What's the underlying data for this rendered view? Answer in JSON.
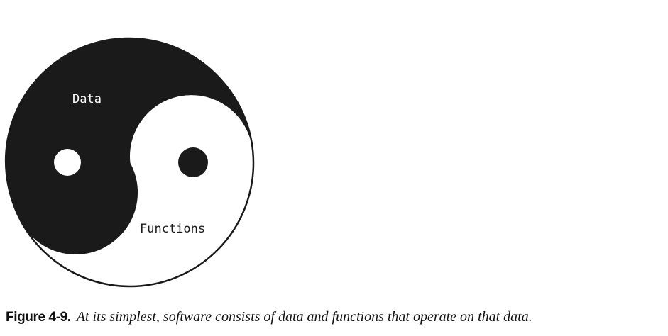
{
  "diagram": {
    "labels": {
      "dark_half": "Data",
      "light_half": "Functions"
    },
    "colors": {
      "dark": "#1a1a1a",
      "light": "#ffffff",
      "outline": "#1a1a1a"
    }
  },
  "caption": {
    "label": "Figure 4-9.",
    "text": "At its simplest, software consists of data and functions that operate on that data."
  }
}
